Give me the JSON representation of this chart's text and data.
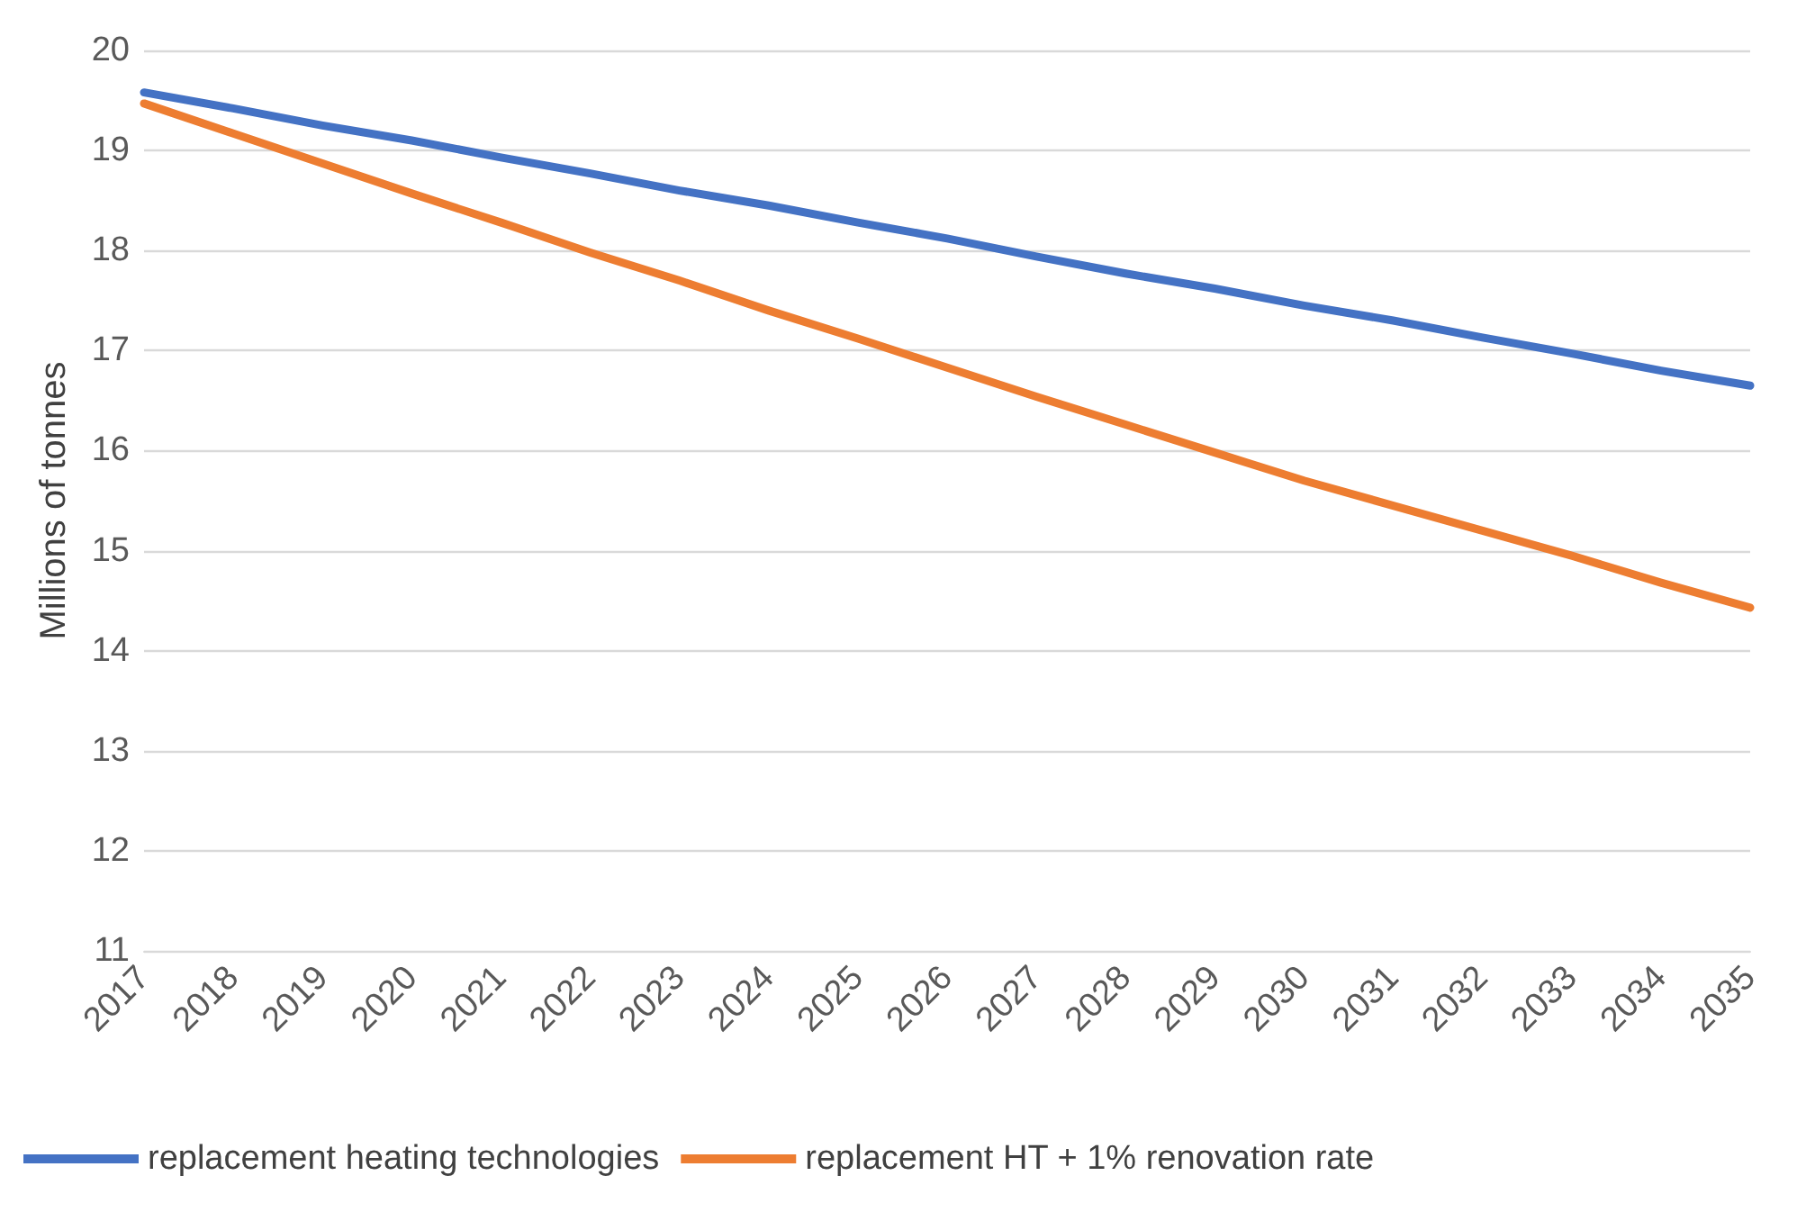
{
  "chart_data": {
    "type": "line",
    "ylabel": "Millions of tonnes",
    "categories": [
      "2017",
      "2018",
      "2019",
      "2020",
      "2021",
      "2022",
      "2023",
      "2024",
      "2025",
      "2026",
      "2027",
      "2028",
      "2029",
      "2030",
      "2031",
      "2032",
      "2033",
      "2034",
      "2035"
    ],
    "series": [
      {
        "name": "replacement heating technologies",
        "color": "#4472c4",
        "values": [
          19.58,
          19.42,
          19.25,
          19.1,
          18.93,
          18.77,
          18.6,
          18.45,
          18.28,
          18.12,
          17.94,
          17.77,
          17.62,
          17.45,
          17.3,
          17.13,
          16.97,
          16.8,
          16.65
        ]
      },
      {
        "name": "replacement HT + 1% renovation rate",
        "color": "#ed7d31",
        "values": [
          19.47,
          19.17,
          18.87,
          18.57,
          18.28,
          17.98,
          17.7,
          17.4,
          17.12,
          16.83,
          16.54,
          16.26,
          15.98,
          15.7,
          15.45,
          15.2,
          14.95,
          14.68,
          14.43
        ]
      }
    ],
    "ylim": [
      11,
      20
    ],
    "yticks": [
      11,
      12,
      13,
      14,
      15,
      16,
      17,
      18,
      19,
      20
    ],
    "grid": "y",
    "legend": "bottom left",
    "marker": "none",
    "line_style": "solid"
  }
}
